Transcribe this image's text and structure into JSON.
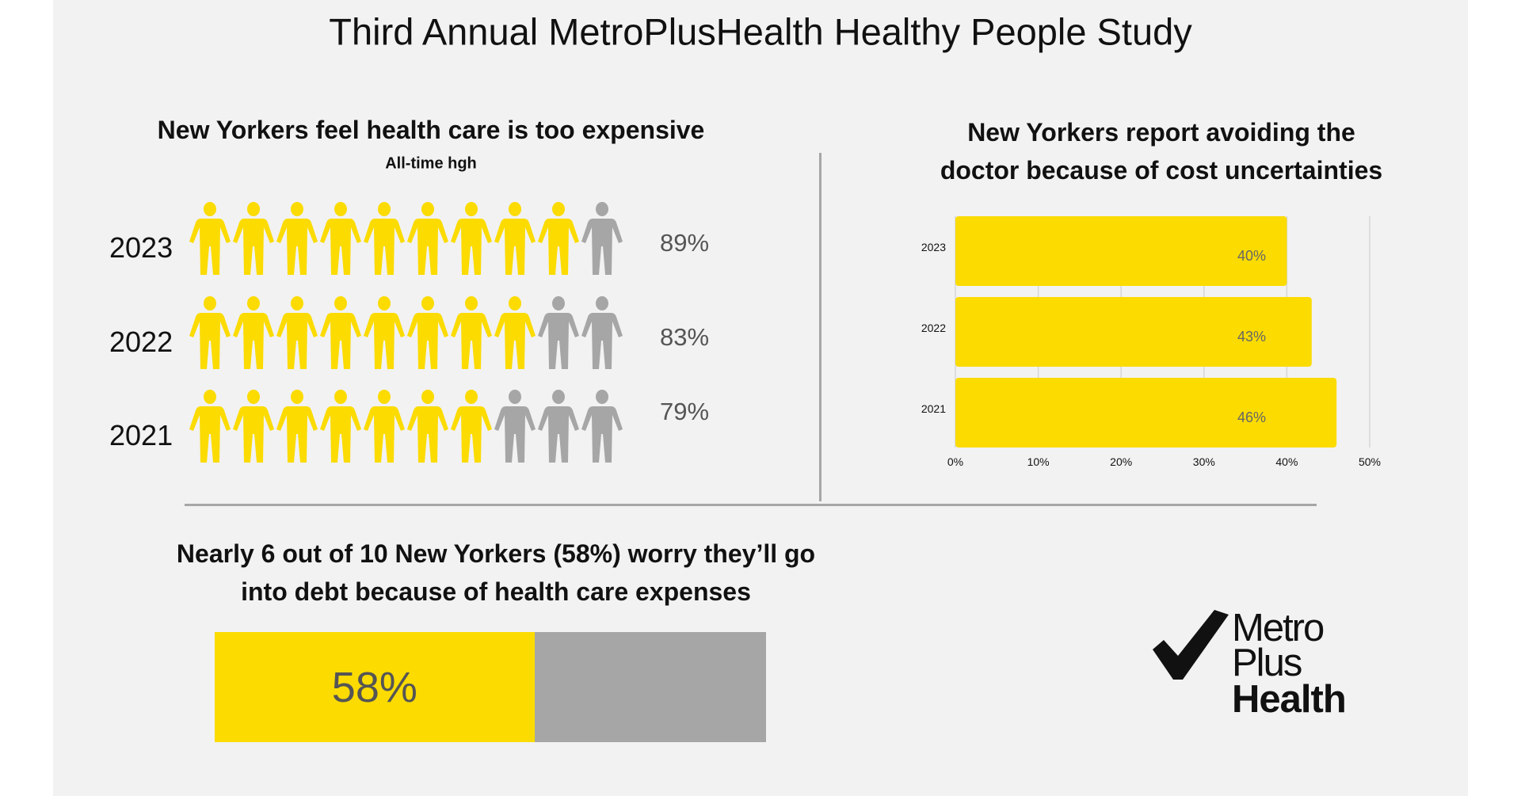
{
  "title": "Third Annual MetroPlusHealth Healthy People Study",
  "colors": {
    "yellow": "#fbdb00",
    "gray": "#a6a6a6",
    "background": "#f2f2f2",
    "label": "#555555"
  },
  "chart_data": [
    {
      "type": "pictograph",
      "title": "New Yorkers feel health care is too expensive",
      "subtitle": "All-time hgh",
      "icon": "person-icon",
      "icons_per_row": 10,
      "rows": [
        {
          "year": "2023",
          "value": 89,
          "label": "89%",
          "filled_icons": 9
        },
        {
          "year": "2022",
          "value": 83,
          "label": "83%",
          "filled_icons": 8
        },
        {
          "year": "2021",
          "value": 79,
          "label": "79%",
          "filled_icons": 7
        }
      ]
    },
    {
      "type": "bar",
      "orientation": "horizontal",
      "title": "New Yorkers report avoiding the doctor because of cost uncertainties",
      "title_lines": [
        "New Yorkers report avoiding the",
        "doctor because of cost uncertainties"
      ],
      "categories": [
        "2023",
        "2022",
        "2021"
      ],
      "values": [
        40,
        43,
        46
      ],
      "data_labels": [
        "40%",
        "43%",
        "46%"
      ],
      "xlim": [
        0,
        50
      ],
      "xticks": [
        "0%",
        "10%",
        "20%",
        "30%",
        "40%",
        "50%"
      ],
      "grid": true
    },
    {
      "type": "bar",
      "orientation": "stacked-horizontal",
      "title": "Nearly 6 out of 10 New Yorkers (58%) worry they’ll go into debt because of health care expenses",
      "title_lines": [
        "Nearly 6 out of 10 New Yorkers (58%) worry they’ll go",
        "into debt because of health care expenses"
      ],
      "value": 58,
      "label": "58%",
      "xlim": [
        0,
        100
      ]
    }
  ],
  "logo": {
    "lines": [
      "Metro",
      "Plus",
      "Health"
    ],
    "icon": "checkmark-icon"
  }
}
